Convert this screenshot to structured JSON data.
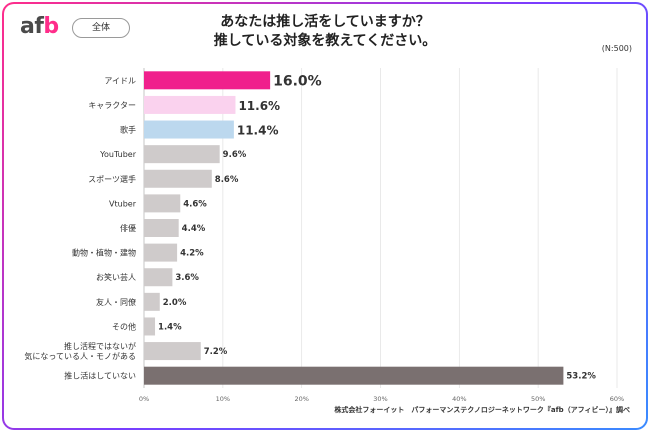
{
  "header": {
    "logo_prefix": "af",
    "logo_suffix": "b",
    "badge": "全体",
    "title_line1": "あなたは推し活をしていますか？",
    "title_line2": "推している対象を教えてください。",
    "sample": "(N:500)"
  },
  "footer": {
    "source": "株式会社フォーイット　パフォーマンステクノロジーネットワーク『afb（アフィビー）』調べ"
  },
  "colors": {
    "highlight1": "#f0208c",
    "highlight2": "#fad2ee",
    "highlight3": "#bcd8ee",
    "default": "#cfcbcb",
    "none": "#7a7070",
    "highlight_text": "#e8208a"
  },
  "chart_data": {
    "type": "bar",
    "orientation": "horizontal",
    "categories": [
      "アイドル",
      "キャラクター",
      "歌手",
      "YouTuber",
      "スポーツ選手",
      "Vtuber",
      "俳優",
      "動物・植物・建物",
      "お笑い芸人",
      "友人・同僚",
      "その他",
      "推し活程ではないが\n気になっている人・モノがある",
      "推し活はしていない"
    ],
    "values": [
      16.0,
      11.6,
      11.4,
      9.6,
      8.6,
      4.6,
      4.4,
      4.2,
      3.6,
      2.0,
      1.4,
      7.2,
      53.2
    ],
    "value_labels": [
      "16.0%",
      "11.6%",
      "11.4%",
      "9.6%",
      "8.6%",
      "4.6%",
      "4.4%",
      "4.2%",
      "3.6%",
      "2.0%",
      "1.4%",
      "7.2%",
      "53.2%"
    ],
    "xlim": [
      0,
      60
    ],
    "xticks": [
      "0%",
      "10%",
      "20%",
      "30%",
      "40%",
      "50%",
      "60%"
    ],
    "grid": true
  }
}
